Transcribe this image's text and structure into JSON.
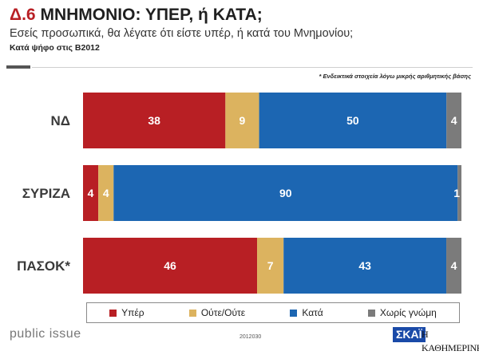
{
  "header": {
    "title_num": "Δ.6",
    "title_text": "ΜΝΗΜΟΝΙΟ: ΥΠΕΡ, ή ΚΑΤΑ;",
    "subtitle": "Εσείς προσωπικά, θα λέγατε ότι είστε υπέρ, ή κατά του Μνημονίου;",
    "base": "Κατά ψήφο στις Β2012"
  },
  "note": "* Ενδεικτικά στοιχεία λόγω μικρής αριθμητικής βάσης",
  "colors": {
    "yper": "#b81f24",
    "oute": "#dcb35f",
    "kata": "#1c66b2",
    "xoris": "#7b7b7b"
  },
  "chart_data": {
    "type": "bar",
    "orientation": "horizontal",
    "stacked": true,
    "xlim": [
      0,
      100
    ],
    "categories": [
      "ΝΔ",
      "ΣΥΡΙΖΑ",
      "ΠΑΣΟΚ*"
    ],
    "series": [
      {
        "name": "Υπέρ",
        "values": [
          38,
          4,
          46
        ],
        "color": "#b81f24"
      },
      {
        "name": "Ούτε/Ούτε",
        "values": [
          9,
          4,
          7
        ],
        "color": "#dcb35f"
      },
      {
        "name": "Κατά",
        "values": [
          50,
          90,
          43
        ],
        "color": "#1c66b2"
      },
      {
        "name": "Χωρίς γνώμη",
        "values": [
          4,
          1,
          4
        ],
        "color": "#7b7b7b"
      }
    ],
    "legend": "bottom"
  },
  "footer": {
    "left_brand": "public issue",
    "code": "2012030",
    "skai": "ΣΚΑΪ",
    "kathimerini": "Η ΚΑΘΗΜΕΡΙΝΗ"
  }
}
